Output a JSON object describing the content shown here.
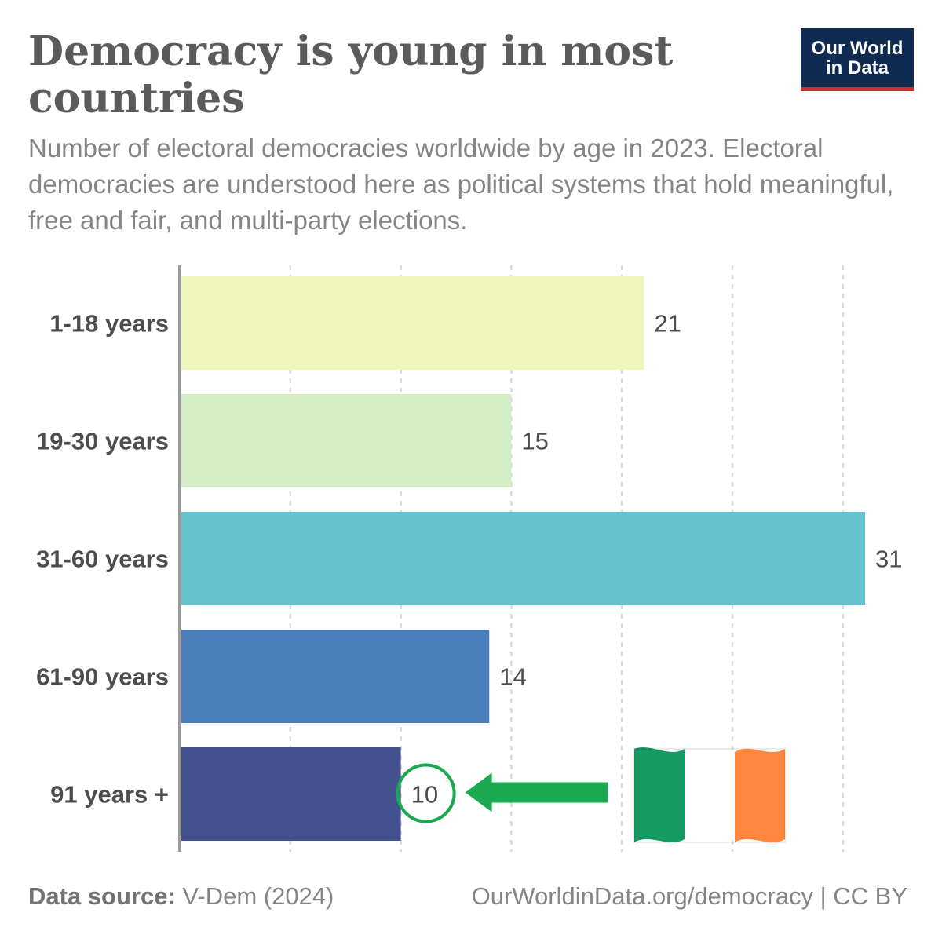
{
  "header": {
    "title": "Democracy is young in most countries",
    "subtitle": "Number of electoral democracies worldwide by age in 2023. Electoral democracies are understood here as political systems that hold meaningful, free and fair, and multi-party elections."
  },
  "logo": {
    "line1": "Our World",
    "line2": "in Data",
    "bg_color": "#0f2b52",
    "accent_color": "#ce2a2a"
  },
  "footer": {
    "source_label": "Data source:",
    "source_value": "V-Dem (2024)",
    "url": "OurWorldinData.org/democracy | CC BY"
  },
  "annotation": {
    "highlighted_category": "91 years +",
    "arrow_color": "#1aa850",
    "icon": "ireland-flag-icon",
    "flag_colors": [
      "#169b62",
      "#ffffff",
      "#ff883e"
    ]
  },
  "chart_data": {
    "type": "bar",
    "orientation": "horizontal",
    "categories": [
      "1-18 years",
      "19-30 years",
      "31-60 years",
      "61-90 years",
      "91 years +"
    ],
    "values": [
      21,
      15,
      31,
      14,
      10
    ],
    "colors": [
      "#eff7bd",
      "#d3edc4",
      "#67c4ce",
      "#4a7eba",
      "#43528f"
    ],
    "xlim": [
      0,
      31
    ],
    "grid": true,
    "legend": "none"
  }
}
